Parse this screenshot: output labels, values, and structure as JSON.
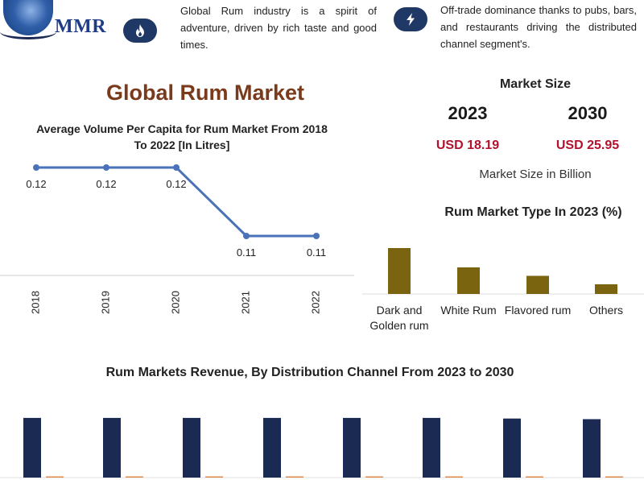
{
  "header": {
    "logo_text": "MMR",
    "info_1": "Global Rum industry is a spirit of adventure, driven by rich taste and good times.",
    "info_2": "Off-trade dominance thanks to pubs, bars, and restaurants driving the distributed channel segment's.",
    "icon_1": "flame-icon",
    "icon_2": "lightning-icon"
  },
  "main_title": "Global Rum Market",
  "market_size": {
    "label": "Market Size",
    "year_1": "2023",
    "year_2": "2030",
    "value_1": "USD 18.19",
    "value_2": "USD 25.95",
    "unit": "Market Size in Billion"
  },
  "colors": {
    "line": "#4a72b8",
    "type_bars": "#7a6410",
    "dist_dark": "#1b2a52",
    "dist_orange": "#e08a4a",
    "title_brown": "#7a3a1c",
    "value_red": "#b3112e"
  },
  "chart_data": [
    {
      "type": "line",
      "title": "Average Volume Per Capita for Rum Market From 2018 To 2022 [In Litres]",
      "categories": [
        "2018",
        "2019",
        "2020",
        "2021",
        "2022"
      ],
      "values": [
        0.12,
        0.12,
        0.12,
        0.11,
        0.11
      ],
      "data_labels": [
        "0.12",
        "0.12",
        "0.12",
        "0.11",
        "0.11"
      ],
      "ylim": [
        0.1,
        0.125
      ]
    },
    {
      "type": "bar",
      "title": "Rum Market Type In 2023 (%)",
      "categories": [
        "Dark and Golden rum",
        "White Rum",
        "Flavored rum",
        "Others"
      ],
      "category_lines": [
        [
          "Dark and",
          "Golden rum"
        ],
        [
          "White Rum"
        ],
        [
          "Flavored rum"
        ],
        [
          "Others"
        ]
      ],
      "values": [
        38,
        22,
        15,
        8
      ],
      "ylim": [
        0,
        40
      ]
    },
    {
      "type": "bar",
      "title": "Rum Markets Revenue, By Distribution Channel From 2023 to 2030",
      "series": [
        {
          "values": [
            95,
            95,
            95,
            95,
            95,
            95,
            94,
            93
          ]
        },
        {
          "values": [
            1,
            1,
            1,
            1,
            1,
            1.2,
            1.5,
            1.8
          ]
        }
      ],
      "ylim": [
        0,
        100
      ]
    }
  ]
}
